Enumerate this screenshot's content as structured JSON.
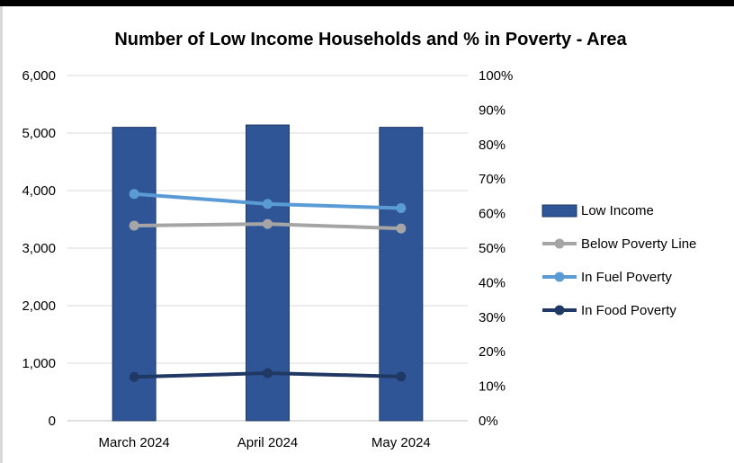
{
  "chart_data": {
    "type": "bar",
    "title": "Number of Low Income Households and % in Poverty - Area",
    "categories": [
      "March 2024",
      "April 2024",
      "May 2024"
    ],
    "y_left": {
      "ylim": [
        0,
        6000
      ],
      "ticks": [
        0,
        1000,
        2000,
        3000,
        4000,
        5000,
        6000
      ],
      "tick_labels": [
        "0",
        "1,000",
        "2,000",
        "3,000",
        "4,000",
        "5,000",
        "6,000"
      ]
    },
    "y_right": {
      "ylim": [
        0,
        100
      ],
      "ticks": [
        0,
        10,
        20,
        30,
        40,
        50,
        60,
        70,
        80,
        90,
        100
      ],
      "tick_labels": [
        "0%",
        "10%",
        "20%",
        "30%",
        "40%",
        "50%",
        "60%",
        "70%",
        "80%",
        "90%",
        "100%"
      ]
    },
    "grid": true,
    "legend_position": "right",
    "series": [
      {
        "name": "Low Income",
        "kind": "bar",
        "axis": "left",
        "color": "#2f5597",
        "values": [
          5100,
          5140,
          5100
        ]
      },
      {
        "name": "Below Poverty Line",
        "kind": "line",
        "axis": "right",
        "color": "#a5a5a5",
        "values": [
          56.5,
          57.0,
          55.7
        ]
      },
      {
        "name": "In Fuel Poverty",
        "kind": "line",
        "axis": "right",
        "color": "#5b9bd5",
        "values": [
          65.7,
          62.8,
          61.6
        ]
      },
      {
        "name": "In Food Poverty",
        "kind": "line",
        "axis": "right",
        "color": "#203864",
        "values": [
          12.7,
          13.8,
          12.8
        ]
      }
    ]
  }
}
